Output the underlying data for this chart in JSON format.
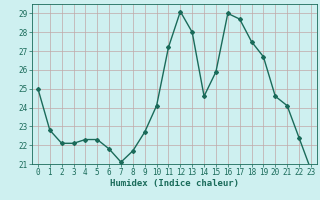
{
  "x": [
    0,
    1,
    2,
    3,
    4,
    5,
    6,
    7,
    8,
    9,
    10,
    11,
    12,
    13,
    14,
    15,
    16,
    17,
    18,
    19,
    20,
    21,
    22,
    23
  ],
  "y": [
    25.0,
    22.8,
    22.1,
    22.1,
    22.3,
    22.3,
    21.8,
    21.1,
    21.7,
    22.7,
    24.1,
    27.2,
    29.1,
    28.0,
    24.6,
    25.9,
    29.0,
    28.7,
    27.5,
    26.7,
    24.6,
    24.1,
    22.4,
    20.7
  ],
  "line_color": "#1a6b5a",
  "marker": "D",
  "marker_size": 2.0,
  "bg_color": "#cef0f0",
  "grid_color": "#c0a8a8",
  "xlabel": "Humidex (Indice chaleur)",
  "ylim": [
    21,
    29.5
  ],
  "xlim": [
    -0.5,
    23.5
  ],
  "yticks": [
    21,
    22,
    23,
    24,
    25,
    26,
    27,
    28,
    29
  ],
  "xticks": [
    0,
    1,
    2,
    3,
    4,
    5,
    6,
    7,
    8,
    9,
    10,
    11,
    12,
    13,
    14,
    15,
    16,
    17,
    18,
    19,
    20,
    21,
    22,
    23
  ],
  "tick_fontsize": 5.5,
  "label_fontsize": 6.5,
  "line_width": 1.0
}
